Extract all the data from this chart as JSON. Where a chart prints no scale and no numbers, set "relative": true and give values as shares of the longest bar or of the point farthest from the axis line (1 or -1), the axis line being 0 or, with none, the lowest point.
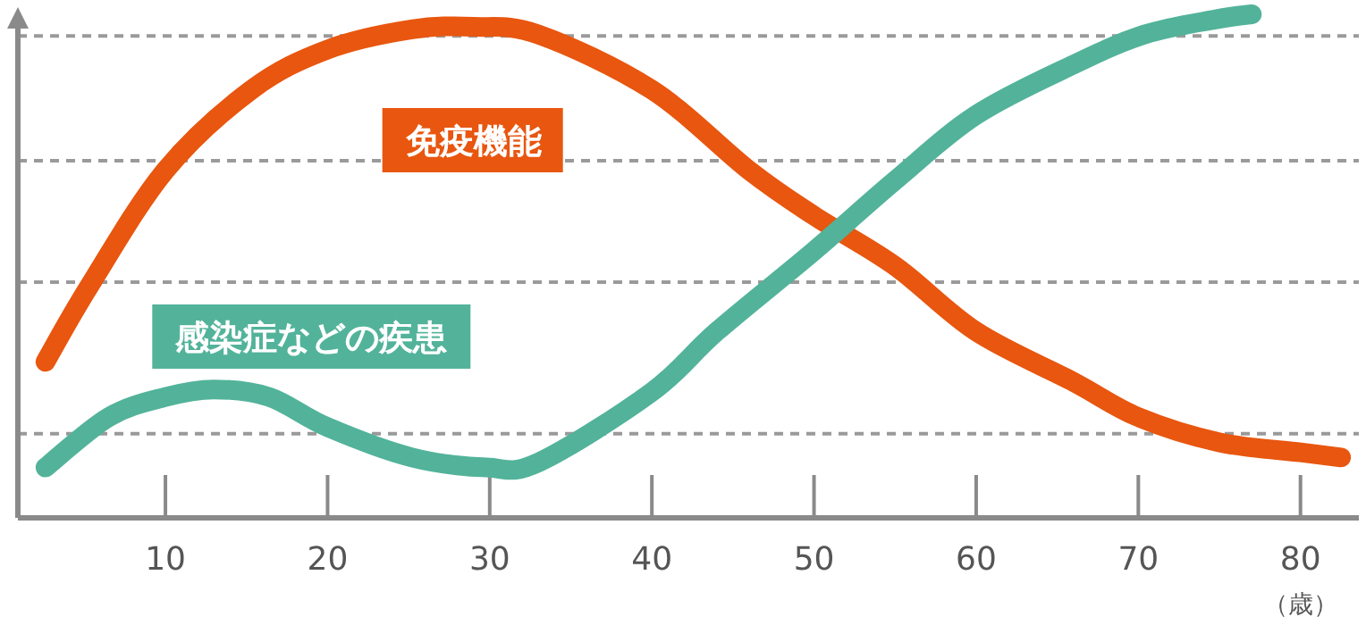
{
  "chart_data": {
    "type": "line",
    "relative": true,
    "xlabel": "（歳）",
    "xlim": [
      0.9,
      83.6
    ],
    "xticks": [
      10,
      20,
      30,
      40,
      50,
      60,
      70,
      80
    ],
    "line_style": "solid",
    "ref_lines": [
      {
        "axis": "y",
        "value": 0.957,
        "color": "#9a9a9a",
        "line_style": "dashed"
      },
      {
        "axis": "y",
        "value": 0.709,
        "color": "#9a9a9a",
        "line_style": "dashed"
      },
      {
        "axis": "y",
        "value": 0.468,
        "color": "#9a9a9a",
        "line_style": "dashed"
      },
      {
        "axis": "y",
        "value": 0.167,
        "color": "#9a9a9a",
        "line_style": "dashed"
      }
    ],
    "series": [
      {
        "name": "免疫機能",
        "color": "#e8560f",
        "x": [
          2.6,
          5.3,
          10,
          15.3,
          20,
          25.2,
          29,
          33,
          40,
          46,
          50,
          55,
          60,
          66,
          70,
          75,
          80,
          82.5
        ],
        "values": [
          0.31,
          0.46,
          0.69,
          0.85,
          0.93,
          0.97,
          0.975,
          0.96,
          0.85,
          0.69,
          0.6,
          0.5,
          0.37,
          0.27,
          0.2,
          0.15,
          0.13,
          0.12
        ]
      },
      {
        "name": "感染症などの疾患",
        "color": "#52b39a",
        "x": [
          2.6,
          6.5,
          10,
          13,
          16.4,
          20,
          25.2,
          29.8,
          33,
          40,
          44,
          50,
          55,
          60,
          66,
          70.4,
          74.8,
          77
        ],
        "values": [
          0.1,
          0.2,
          0.24,
          0.255,
          0.24,
          0.18,
          0.12,
          0.1,
          0.11,
          0.25,
          0.37,
          0.53,
          0.67,
          0.8,
          0.9,
          0.96,
          0.99,
          1
        ]
      }
    ]
  }
}
